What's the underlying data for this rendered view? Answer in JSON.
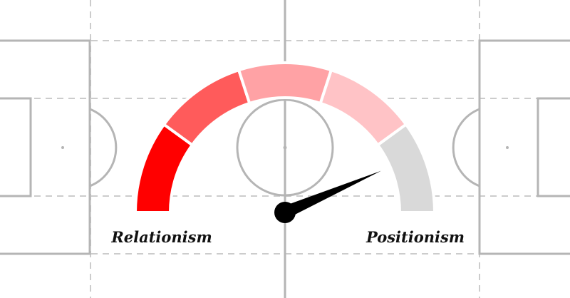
{
  "gauge": {
    "left_label": "Relationism",
    "right_label": "Positionism",
    "value": 0.87,
    "segment_colors": [
      "#ff0000",
      "#ff5b5b",
      "#ffa2a5",
      "#ffc3c6",
      "#d9d9d9"
    ],
    "needle_color": "#000000"
  },
  "pitch": {
    "line_color": "#b5b5b5",
    "zone_line_color": "#cccccc",
    "background": "#ffffff"
  }
}
